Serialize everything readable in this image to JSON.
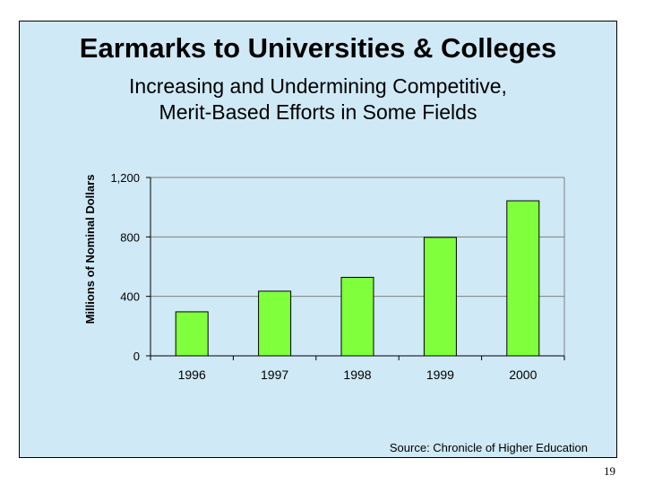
{
  "slide": {
    "title": "Earmarks to Universities & Colleges",
    "subtitle_lines": [
      "Increasing and Undermining Competitive,",
      "Merit-Based Efforts in Some Fields"
    ],
    "source": "Source: Chronicle of Higher Education",
    "page_number": "19"
  },
  "colors": {
    "bar_fill": "#80ff3c",
    "panel_bg": "#cfe9f6"
  },
  "chart_data": {
    "type": "bar",
    "categories": [
      "1996",
      "1997",
      "1998",
      "1999",
      "2000"
    ],
    "values": [
      296,
      435,
      528,
      797,
      1043
    ],
    "ylabel": "Millions of Nominal Dollars",
    "ylim": [
      0,
      1200
    ],
    "yticks": [
      0,
      400,
      800,
      1200
    ],
    "ytick_labels": [
      "0",
      "400",
      "800",
      "1,200"
    ],
    "grid": true,
    "legend": "none"
  }
}
